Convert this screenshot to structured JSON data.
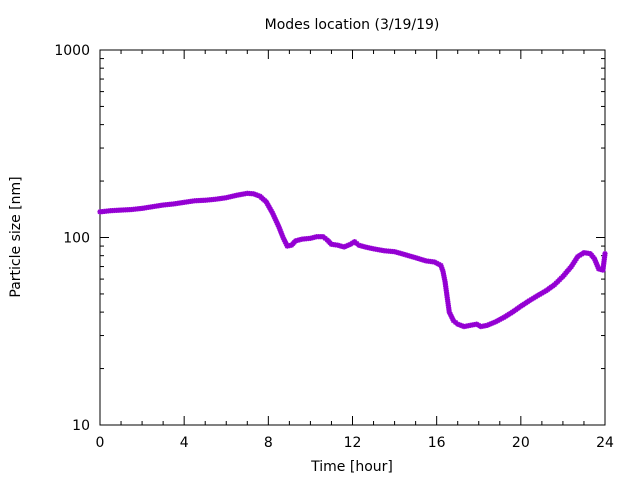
{
  "chart_data": {
    "type": "scatter",
    "title": "Modes location (3/19/19)",
    "xlabel": "Time [hour]",
    "ylabel": "Particle size [nm]",
    "x_ticks": [
      "0",
      "4",
      "8",
      "12",
      "16",
      "20",
      "24"
    ],
    "y_ticks": [
      "10",
      "100",
      "1000"
    ],
    "xlim": [
      0,
      24
    ],
    "ylim": [
      10,
      1000
    ],
    "yscale": "log",
    "grid": false,
    "marker_color": "#9400d3",
    "series": [
      {
        "points": [
          [
            0.0,
            137
          ],
          [
            0.5,
            139
          ],
          [
            1.0,
            140
          ],
          [
            1.5,
            141
          ],
          [
            2.0,
            143
          ],
          [
            2.5,
            146
          ],
          [
            3.0,
            149
          ],
          [
            3.5,
            151
          ],
          [
            4.0,
            154
          ],
          [
            4.5,
            157
          ],
          [
            5.0,
            158
          ],
          [
            5.5,
            160
          ],
          [
            6.0,
            163
          ],
          [
            6.5,
            168
          ],
          [
            7.0,
            172
          ],
          [
            7.3,
            171
          ],
          [
            7.6,
            166
          ],
          [
            7.9,
            155
          ],
          [
            8.2,
            135
          ],
          [
            8.5,
            114
          ],
          [
            8.7,
            100
          ],
          [
            8.9,
            90
          ],
          [
            9.1,
            91
          ],
          [
            9.3,
            96
          ],
          [
            9.6,
            98
          ],
          [
            10.0,
            99
          ],
          [
            10.3,
            101
          ],
          [
            10.6,
            101
          ],
          [
            10.8,
            97
          ],
          [
            11.0,
            92
          ],
          [
            11.3,
            91
          ],
          [
            11.6,
            89
          ],
          [
            11.9,
            92
          ],
          [
            12.1,
            95
          ],
          [
            12.3,
            91
          ],
          [
            12.6,
            89
          ],
          [
            13.0,
            87
          ],
          [
            13.5,
            85
          ],
          [
            14.0,
            84
          ],
          [
            14.5,
            81
          ],
          [
            15.0,
            78
          ],
          [
            15.5,
            75
          ],
          [
            15.9,
            74
          ],
          [
            16.2,
            71
          ],
          [
            16.3,
            66
          ],
          [
            16.4,
            58
          ],
          [
            16.5,
            48
          ],
          [
            16.6,
            40
          ],
          [
            16.8,
            36
          ],
          [
            17.0,
            34.5
          ],
          [
            17.3,
            33.5
          ],
          [
            17.6,
            34
          ],
          [
            17.9,
            34.5
          ],
          [
            18.1,
            33.5
          ],
          [
            18.4,
            34
          ],
          [
            18.8,
            35.5
          ],
          [
            19.2,
            37.5
          ],
          [
            19.6,
            40
          ],
          [
            20.0,
            43
          ],
          [
            20.4,
            46
          ],
          [
            20.8,
            49
          ],
          [
            21.2,
            52
          ],
          [
            21.6,
            56
          ],
          [
            22.0,
            62
          ],
          [
            22.4,
            70
          ],
          [
            22.7,
            79
          ],
          [
            23.0,
            83
          ],
          [
            23.3,
            82
          ],
          [
            23.5,
            77
          ],
          [
            23.7,
            68
          ],
          [
            23.9,
            67
          ],
          [
            24.0,
            82
          ]
        ]
      }
    ]
  }
}
